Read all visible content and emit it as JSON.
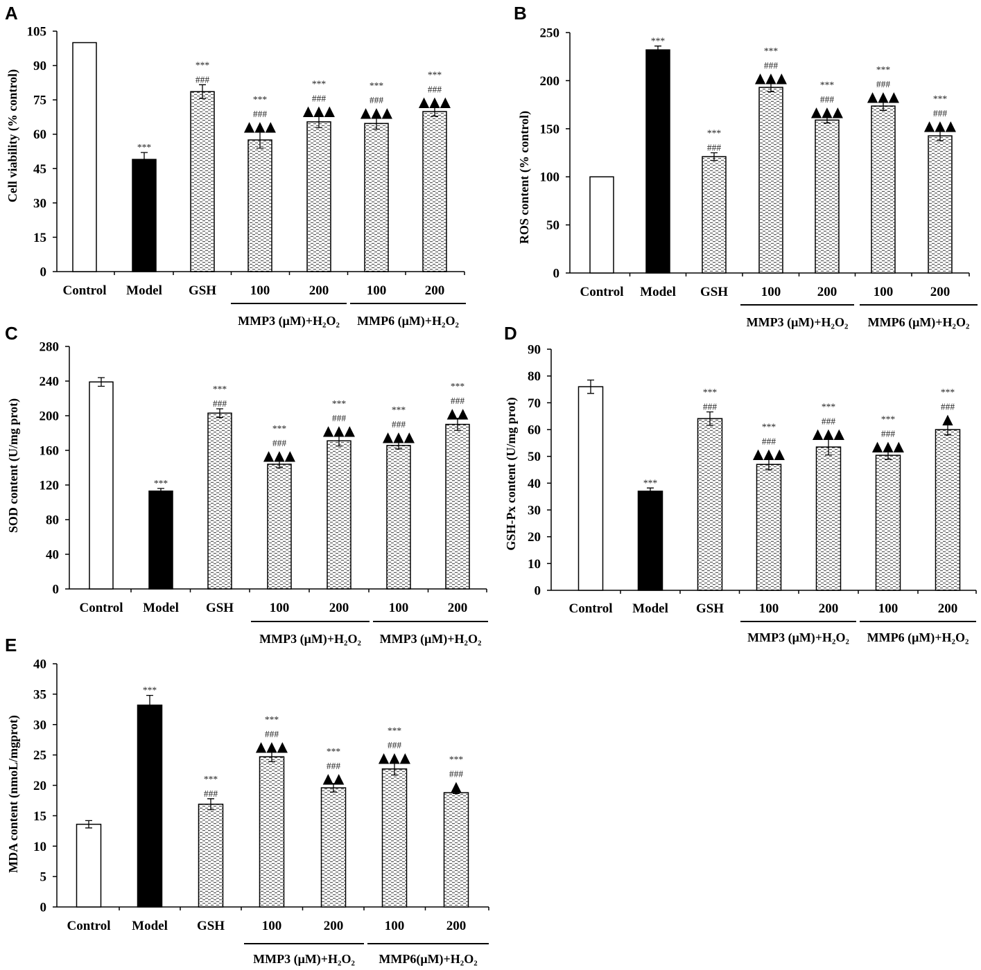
{
  "chart_data": [
    {
      "panel": "A",
      "type": "bar",
      "ylabel": "Cell viability (% control)",
      "ylim": [
        0,
        105
      ],
      "yticks": [
        0,
        15,
        30,
        45,
        60,
        75,
        90,
        105
      ],
      "categories": [
        "Control",
        "Model",
        "GSH",
        "100",
        "200",
        "100",
        "200"
      ],
      "values": [
        100,
        49,
        78.6,
        57.5,
        65.4,
        64.7,
        69.9
      ],
      "errors": [
        0,
        3,
        3,
        3.6,
        2.5,
        2.5,
        2
      ],
      "colors": [
        "#ffffff",
        "#000000",
        "#ffffff",
        "#ffffff",
        "#ffffff",
        "#ffffff",
        "#ffffff"
      ],
      "hatched": [
        false,
        false,
        true,
        true,
        true,
        true,
        true
      ],
      "annotations": [
        [],
        [
          "***"
        ],
        [
          "***",
          "###"
        ],
        [
          "***",
          "###",
          "▲▲▲"
        ],
        [
          "***",
          "###",
          "▲▲▲"
        ],
        [
          "***",
          "###",
          "▲▲▲"
        ],
        [
          "***",
          "###",
          "▲▲▲"
        ]
      ],
      "groups": [
        {
          "label": "MMP3 (μM)+H₂O₂",
          "span": [
            3,
            4
          ]
        },
        {
          "label": "MMP6 (μM)+H₂O₂",
          "span": [
            5,
            6
          ]
        }
      ]
    },
    {
      "panel": "B",
      "type": "bar",
      "ylabel": "ROS content (% control)",
      "ylim": [
        0,
        250
      ],
      "yticks": [
        0,
        50,
        100,
        150,
        200,
        250
      ],
      "categories": [
        "Control",
        "Model",
        "GSH",
        "100",
        "200",
        "100",
        "200"
      ],
      "values": [
        100,
        232,
        121,
        193,
        159,
        173.6,
        142.6
      ],
      "errors": [
        0,
        4,
        4,
        4.5,
        3,
        4.5,
        5
      ],
      "colors": [
        "#ffffff",
        "#000000",
        "#ffffff",
        "#ffffff",
        "#ffffff",
        "#ffffff",
        "#ffffff"
      ],
      "hatched": [
        false,
        false,
        true,
        true,
        true,
        true,
        true
      ],
      "annotations": [
        [],
        [
          "***"
        ],
        [
          "***",
          "###"
        ],
        [
          "***",
          "###",
          "▲▲▲"
        ],
        [
          "***",
          "###",
          "▲▲▲"
        ],
        [
          "***",
          "###",
          "▲▲▲"
        ],
        [
          "***",
          "###",
          "▲▲▲"
        ]
      ],
      "groups": [
        {
          "label": "MMP3 (μM)+H₂O₂",
          "span": [
            3,
            4
          ]
        },
        {
          "label": "MMP6 (μM)+H₂O₂",
          "span": [
            5,
            6
          ]
        }
      ]
    },
    {
      "panel": "C",
      "type": "bar",
      "ylabel": "SOD content (U/mg prot)",
      "ylim": [
        0,
        280
      ],
      "yticks": [
        0,
        40,
        80,
        120,
        160,
        200,
        240,
        280
      ],
      "categories": [
        "Control",
        "Model",
        "GSH",
        "100",
        "200",
        "100",
        "200"
      ],
      "values": [
        239,
        113,
        203,
        144,
        171,
        165.6,
        190
      ],
      "errors": [
        5,
        3,
        5,
        4,
        6,
        4,
        7
      ],
      "colors": [
        "#ffffff",
        "#000000",
        "#ffffff",
        "#ffffff",
        "#ffffff",
        "#ffffff",
        "#ffffff"
      ],
      "hatched": [
        false,
        false,
        true,
        true,
        true,
        true,
        true
      ],
      "annotations": [
        [],
        [
          "***"
        ],
        [
          "***",
          "###"
        ],
        [
          "***",
          "###",
          "▲▲▲"
        ],
        [
          "***",
          "###",
          "▲▲▲"
        ],
        [
          "***",
          "###",
          "▲▲▲"
        ],
        [
          "***",
          "###",
          "▲▲"
        ]
      ],
      "groups": [
        {
          "label": "MMP3 (μM)+H₂O₂",
          "span": [
            3,
            4
          ]
        },
        {
          "label": "MMP3 (μM)+H₂O₂",
          "span": [
            5,
            6
          ]
        }
      ]
    },
    {
      "panel": "D",
      "type": "bar",
      "ylabel": "GSH-Px content (U/mg prot)",
      "ylim": [
        0,
        90
      ],
      "yticks": [
        0,
        10,
        20,
        30,
        40,
        50,
        60,
        70,
        80,
        90
      ],
      "categories": [
        "Control",
        "Model",
        "GSH",
        "100",
        "200",
        "100",
        "200"
      ],
      "values": [
        76,
        37,
        64.1,
        47,
        53.5,
        50.4,
        60
      ],
      "errors": [
        2.5,
        1.2,
        2.5,
        2,
        3,
        1.5,
        2
      ],
      "colors": [
        "#ffffff",
        "#000000",
        "#ffffff",
        "#ffffff",
        "#ffffff",
        "#ffffff",
        "#ffffff"
      ],
      "hatched": [
        false,
        false,
        true,
        true,
        true,
        true,
        true
      ],
      "annotations": [
        [],
        [
          "***"
        ],
        [
          "***",
          "###"
        ],
        [
          "***",
          "###",
          "▲▲▲"
        ],
        [
          "***",
          "###",
          "▲▲▲"
        ],
        [
          "***",
          "###",
          "▲▲▲"
        ],
        [
          "***",
          "###",
          "▲"
        ]
      ],
      "groups": [
        {
          "label": "MMP3 (μM)+H₂O₂",
          "span": [
            3,
            4
          ]
        },
        {
          "label": "MMP6 (μM)+H₂O₂",
          "span": [
            5,
            6
          ]
        }
      ]
    },
    {
      "panel": "E",
      "type": "bar",
      "ylabel": "MDA content (nmoL/mgprot)",
      "ylim": [
        0,
        40
      ],
      "yticks": [
        0,
        5,
        10,
        15,
        20,
        25,
        30,
        35,
        40
      ],
      "categories": [
        "Control",
        "Model",
        "GSH",
        "100",
        "200",
        "100",
        "200"
      ],
      "values": [
        13.6,
        33.2,
        16.9,
        24.7,
        19.6,
        22.7,
        18.8
      ],
      "errors": [
        0.6,
        1.6,
        0.9,
        0.8,
        0.7,
        1.0,
        0.15
      ],
      "colors": [
        "#ffffff",
        "#000000",
        "#ffffff",
        "#ffffff",
        "#ffffff",
        "#ffffff",
        "#ffffff"
      ],
      "hatched": [
        false,
        false,
        true,
        true,
        true,
        true,
        true
      ],
      "annotations": [
        [],
        [
          "***"
        ],
        [
          "***",
          "###"
        ],
        [
          "***",
          "###",
          "▲▲▲"
        ],
        [
          "***",
          "###",
          "▲▲"
        ],
        [
          "***",
          "###",
          "▲▲▲"
        ],
        [
          "***",
          "###",
          "▲"
        ]
      ],
      "groups": [
        {
          "label": "MMP3 (μM)+H₂O₂",
          "span": [
            3,
            4
          ]
        },
        {
          "label": "MMP6(μM)+H₂O₂",
          "span": [
            5,
            6
          ]
        }
      ]
    }
  ]
}
